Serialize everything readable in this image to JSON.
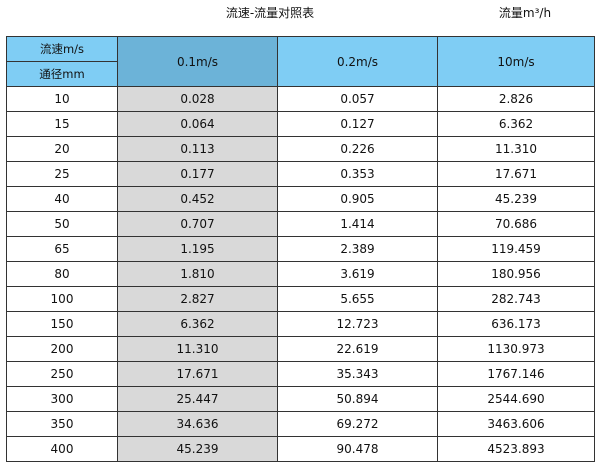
{
  "title": "流速-流量对照表",
  "unit_label": "流量m³/h",
  "header": {
    "velocity_label": "流速m/s",
    "diameter_label": "通径mm",
    "columns": [
      "0.1m/s",
      "0.2m/s",
      "10m/s"
    ]
  },
  "colors": {
    "header": "#7fcdf4",
    "header_highlight": "#6cb3d8",
    "column_highlight": "#d9d9d9"
  },
  "rows": [
    [
      "10",
      "0.028",
      "0.057",
      "2.826"
    ],
    [
      "15",
      "0.064",
      "0.127",
      "6.362"
    ],
    [
      "20",
      "0.113",
      "0.226",
      "11.310"
    ],
    [
      "25",
      "0.177",
      "0.353",
      "17.671"
    ],
    [
      "40",
      "0.452",
      "0.905",
      "45.239"
    ],
    [
      "50",
      "0.707",
      "1.414",
      "70.686"
    ],
    [
      "65",
      "1.195",
      "2.389",
      "119.459"
    ],
    [
      "80",
      "1.810",
      "3.619",
      "180.956"
    ],
    [
      "100",
      "2.827",
      "5.655",
      "282.743"
    ],
    [
      "150",
      "6.362",
      "12.723",
      "636.173"
    ],
    [
      "200",
      "11.310",
      "22.619",
      "1130.973"
    ],
    [
      "250",
      "17.671",
      "35.343",
      "1767.146"
    ],
    [
      "300",
      "25.447",
      "50.894",
      "2544.690"
    ],
    [
      "350",
      "34.636",
      "69.272",
      "3463.606"
    ],
    [
      "400",
      "45.239",
      "90.478",
      "4523.893"
    ]
  ]
}
